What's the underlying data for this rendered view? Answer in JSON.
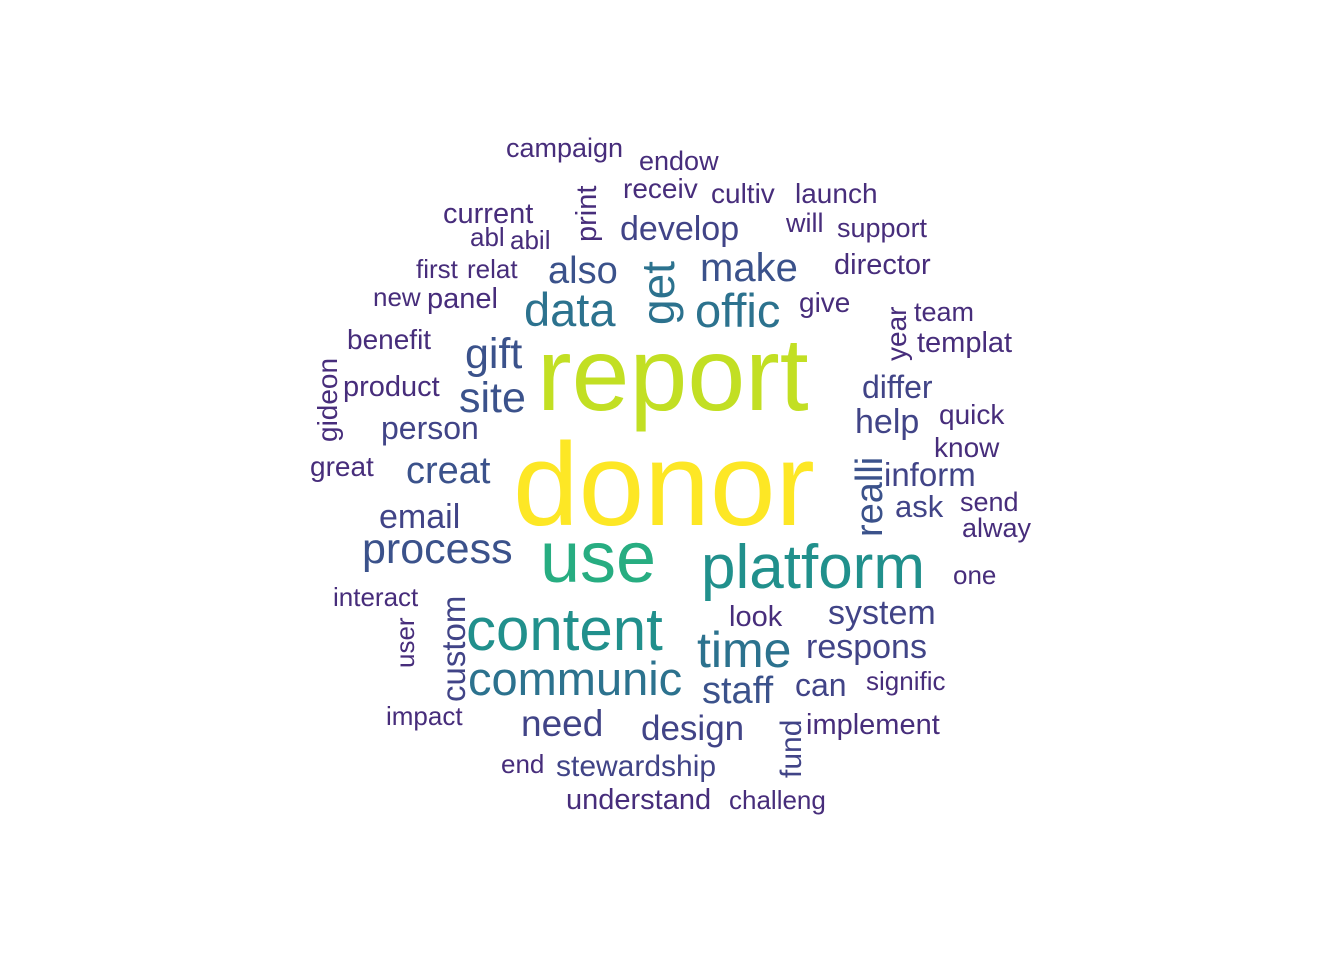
{
  "palette": [
    "#FDE725",
    "#C2DF23",
    "#27AD81",
    "#21908C",
    "#2C728E",
    "#3B528B",
    "#414487",
    "#472D7B"
  ],
  "words": [
    {
      "text": "donor",
      "weight": 100
    },
    {
      "text": "report",
      "weight": 88
    },
    {
      "text": "use",
      "weight": 62
    },
    {
      "text": "platform",
      "weight": 54
    },
    {
      "text": "content",
      "weight": 52
    },
    {
      "text": "time",
      "weight": 44
    },
    {
      "text": "communic",
      "weight": 42
    },
    {
      "text": "data",
      "weight": 42
    },
    {
      "text": "offic",
      "weight": 42
    },
    {
      "text": "get",
      "weight": 40
    },
    {
      "text": "gift",
      "weight": 38
    },
    {
      "text": "site",
      "weight": 38
    },
    {
      "text": "process",
      "weight": 38
    },
    {
      "text": "make",
      "weight": 36
    },
    {
      "text": "also",
      "weight": 34
    },
    {
      "text": "creat",
      "weight": 34
    },
    {
      "text": "realli",
      "weight": 34
    },
    {
      "text": "staff",
      "weight": 34
    },
    {
      "text": "need",
      "weight": 33
    },
    {
      "text": "design",
      "weight": 32
    },
    {
      "text": "develop",
      "weight": 31
    },
    {
      "text": "email",
      "weight": 31
    },
    {
      "text": "system",
      "weight": 31
    },
    {
      "text": "respons",
      "weight": 31
    },
    {
      "text": "help",
      "weight": 31
    },
    {
      "text": "inform",
      "weight": 30
    },
    {
      "text": "custom",
      "weight": 30
    },
    {
      "text": "person",
      "weight": 30
    },
    {
      "text": "differ",
      "weight": 29
    },
    {
      "text": "can",
      "weight": 29
    },
    {
      "text": "ask",
      "weight": 28
    },
    {
      "text": "stewardship",
      "weight": 28
    },
    {
      "text": "fund",
      "weight": 28
    },
    {
      "text": "understand",
      "weight": 28
    },
    {
      "text": "look",
      "weight": 27
    },
    {
      "text": "implement",
      "weight": 27
    },
    {
      "text": "product",
      "weight": 27
    },
    {
      "text": "panel",
      "weight": 27
    },
    {
      "text": "current",
      "weight": 27
    },
    {
      "text": "print",
      "weight": 27
    },
    {
      "text": "director",
      "weight": 27
    },
    {
      "text": "templat",
      "weight": 27
    },
    {
      "text": "give",
      "weight": 26
    },
    {
      "text": "year",
      "weight": 26
    },
    {
      "text": "quick",
      "weight": 26
    },
    {
      "text": "know",
      "weight": 26
    },
    {
      "text": "benefit",
      "weight": 26
    },
    {
      "text": "gideon",
      "weight": 26
    },
    {
      "text": "great",
      "weight": 26
    },
    {
      "text": "receiv",
      "weight": 26
    },
    {
      "text": "cultiv",
      "weight": 26
    },
    {
      "text": "launch",
      "weight": 26
    },
    {
      "text": "campaign",
      "weight": 25
    },
    {
      "text": "endow",
      "weight": 25
    },
    {
      "text": "support",
      "weight": 25
    },
    {
      "text": "will",
      "weight": 25
    },
    {
      "text": "team",
      "weight": 25
    },
    {
      "text": "send",
      "weight": 25
    },
    {
      "text": "alway",
      "weight": 25
    },
    {
      "text": "one",
      "weight": 24
    },
    {
      "text": "interact",
      "weight": 24
    },
    {
      "text": "user",
      "weight": 24
    },
    {
      "text": "impact",
      "weight": 24
    },
    {
      "text": "signific",
      "weight": 24
    },
    {
      "text": "challeng",
      "weight": 24
    },
    {
      "text": "end",
      "weight": 24
    },
    {
      "text": "abil",
      "weight": 24
    },
    {
      "text": "abl",
      "weight": 24
    },
    {
      "text": "first",
      "weight": 24
    },
    {
      "text": "relat",
      "weight": 24
    },
    {
      "text": "new",
      "weight": 24
    }
  ]
}
